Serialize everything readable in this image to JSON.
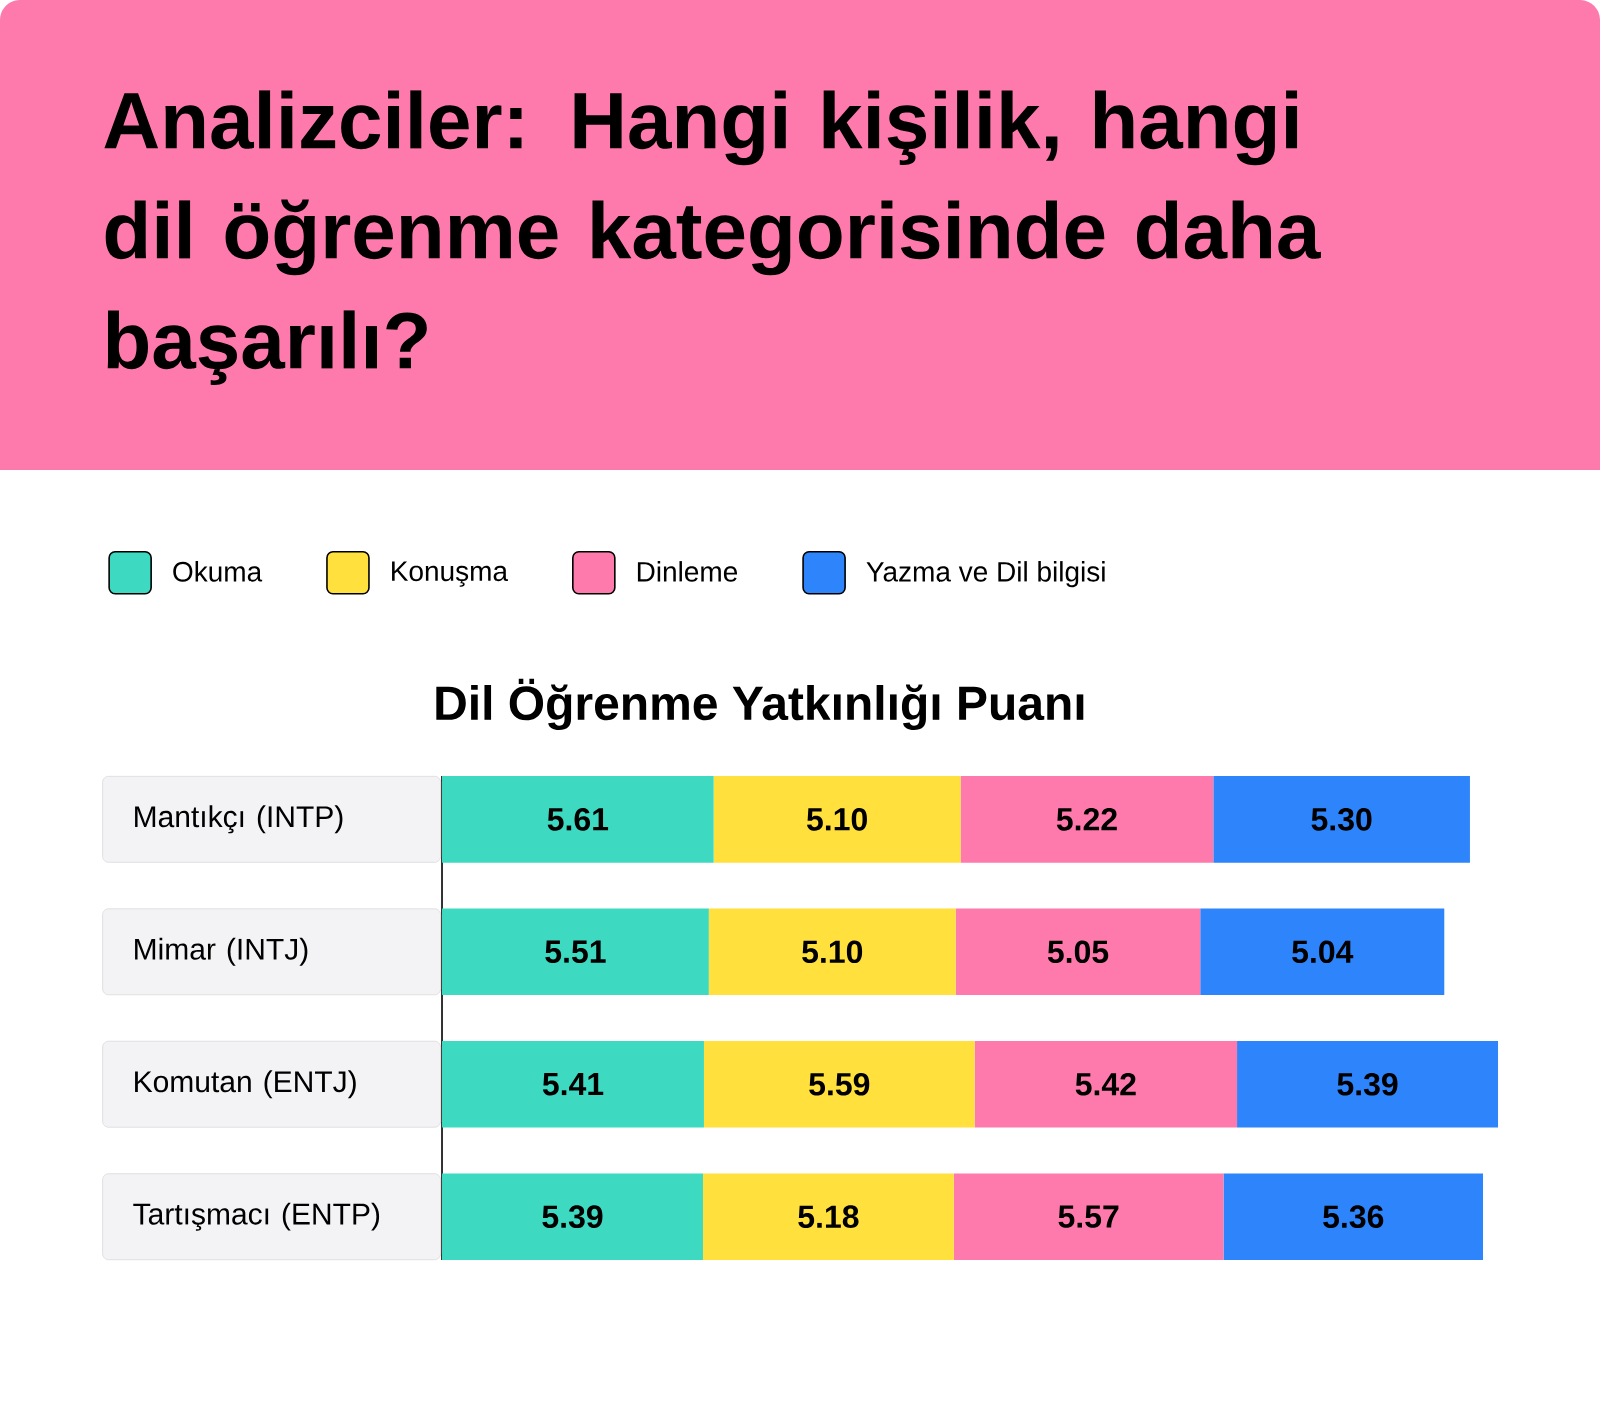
{
  "chart_data": {
    "type": "bar",
    "orientation": "horizontal",
    "stacked": true,
    "title": "Analizciler: Hangi kişilik, hangi dil öğrenme kategorisinde daha başarılı?",
    "subtitle": "Dil Öğrenme Yatkınlığı Puanı",
    "categories": [
      "Mantıkçı (INTP)",
      "Mimar (INTJ)",
      "Komutan (ENTJ)",
      "Tartışmacı (ENTP)"
    ],
    "series": [
      {
        "name": "Okuma",
        "color": "#3dd9c1",
        "values": [
          5.61,
          5.51,
          5.41,
          5.39
        ],
        "value_labels": [
          "5.61",
          "5.51",
          "5.41",
          "5.39"
        ]
      },
      {
        "name": "Konuşma",
        "color": "#ffe03c",
        "values": [
          5.1,
          5.1,
          5.59,
          5.18
        ],
        "value_labels": [
          "5.10",
          "5.10",
          "5.59",
          "5.18"
        ]
      },
      {
        "name": "Dinleme",
        "color": "#ff7aac",
        "values": [
          5.22,
          5.05,
          5.42,
          5.57
        ],
        "value_labels": [
          "5.22",
          "5.05",
          "5.42",
          "5.57"
        ]
      },
      {
        "name": "Yazma ve Dil bilgisi",
        "color": "#2d84fb",
        "values": [
          5.3,
          5.04,
          5.39,
          5.36
        ],
        "value_labels": [
          "5.30",
          "5.04",
          "5.39",
          "5.36"
        ]
      }
    ],
    "legend": "top left",
    "tick_labels": "y"
  }
}
